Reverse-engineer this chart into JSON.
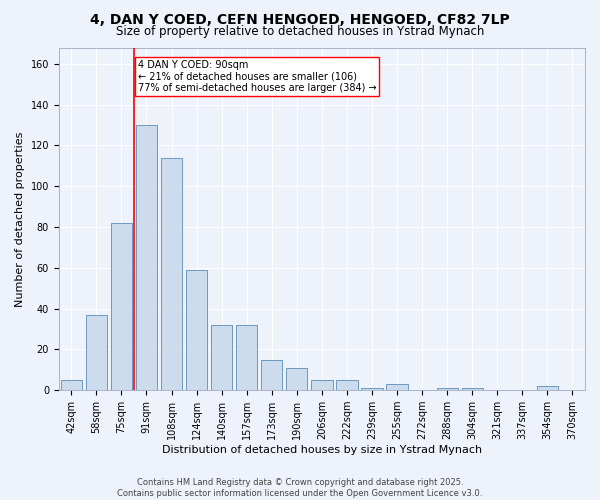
{
  "title": "4, DAN Y COED, CEFN HENGOED, HENGOED, CF82 7LP",
  "subtitle": "Size of property relative to detached houses in Ystrad Mynach",
  "xlabel": "Distribution of detached houses by size in Ystrad Mynach",
  "ylabel": "Number of detached properties",
  "bar_color": "#cddcec",
  "bar_edge_color": "#5b8db8",
  "categories": [
    "42sqm",
    "58sqm",
    "75sqm",
    "91sqm",
    "108sqm",
    "124sqm",
    "140sqm",
    "157sqm",
    "173sqm",
    "190sqm",
    "206sqm",
    "222sqm",
    "239sqm",
    "255sqm",
    "272sqm",
    "288sqm",
    "304sqm",
    "321sqm",
    "337sqm",
    "354sqm",
    "370sqm"
  ],
  "values": [
    5,
    37,
    82,
    130,
    114,
    59,
    32,
    32,
    15,
    11,
    5,
    5,
    1,
    3,
    0,
    1,
    1,
    0,
    0,
    2,
    0
  ],
  "ylim": [
    0,
    168
  ],
  "yticks": [
    0,
    20,
    40,
    60,
    80,
    100,
    120,
    140,
    160
  ],
  "red_line_index": 3,
  "annotation_text": "4 DAN Y COED: 90sqm\n← 21% of detached houses are smaller (106)\n77% of semi-detached houses are larger (384) →",
  "footer_line1": "Contains HM Land Registry data © Crown copyright and database right 2025.",
  "footer_line2": "Contains public sector information licensed under the Open Government Licence v3.0.",
  "background_color": "#eef2fb",
  "grid_color": "#ffffff",
  "title_fontsize": 10,
  "subtitle_fontsize": 8.5,
  "ylabel_fontsize": 8,
  "xlabel_fontsize": 8,
  "tick_fontsize": 7,
  "footer_fontsize": 6,
  "annotation_fontsize": 7
}
